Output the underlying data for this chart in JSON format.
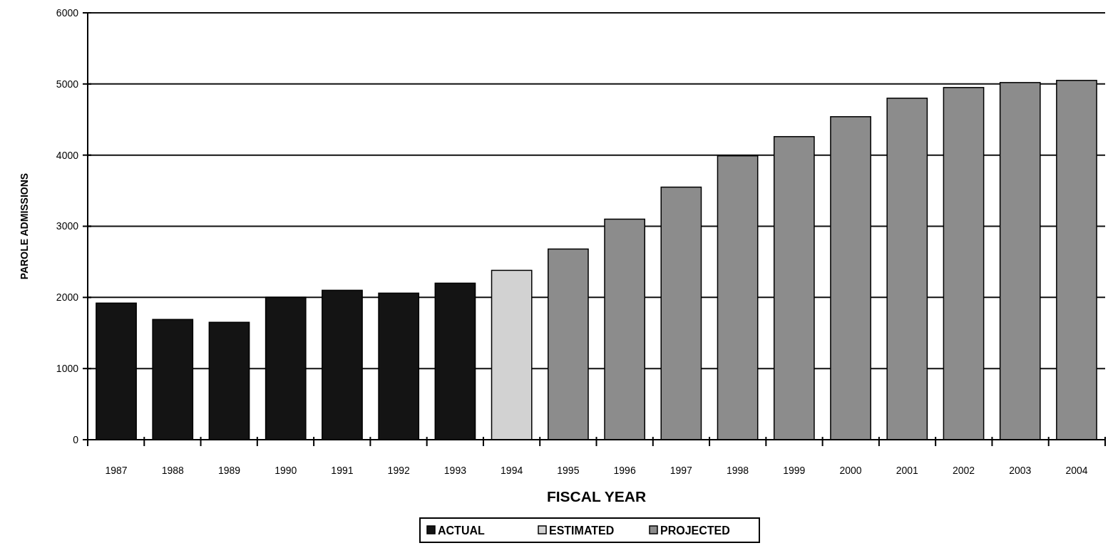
{
  "chart_data": {
    "type": "bar",
    "stacked": true,
    "xlabel": "FISCAL YEAR",
    "ylabel": "PAROLE ADMISSIONS",
    "categories": [
      "1987",
      "1988",
      "1989",
      "1990",
      "1991",
      "1992",
      "1993",
      "1994",
      "1995",
      "1996",
      "1997",
      "1998",
      "1999",
      "2000",
      "2001",
      "2002",
      "2003",
      "2004"
    ],
    "series": [
      {
        "name": "ACTUAL",
        "color": "#141414",
        "values": [
          1920,
          1690,
          1650,
          2000,
          2100,
          2060,
          2200,
          null,
          null,
          null,
          null,
          null,
          null,
          null,
          null,
          null,
          null,
          null
        ]
      },
      {
        "name": "ESTIMATED",
        "color": "#d2d2d2",
        "values": [
          null,
          null,
          null,
          null,
          null,
          null,
          null,
          2380,
          null,
          null,
          null,
          null,
          null,
          null,
          null,
          null,
          null,
          null
        ]
      },
      {
        "name": "PROJECTED",
        "color": "#8c8c8c",
        "values": [
          null,
          null,
          null,
          null,
          null,
          null,
          null,
          null,
          2680,
          3100,
          3550,
          3990,
          4260,
          4540,
          4800,
          4950,
          5020,
          5050
        ]
      }
    ],
    "ylim": [
      0,
      6000
    ],
    "yticks": [
      0,
      1000,
      2000,
      3000,
      4000,
      5000,
      6000
    ],
    "grid": "y",
    "legend": "bottom"
  }
}
